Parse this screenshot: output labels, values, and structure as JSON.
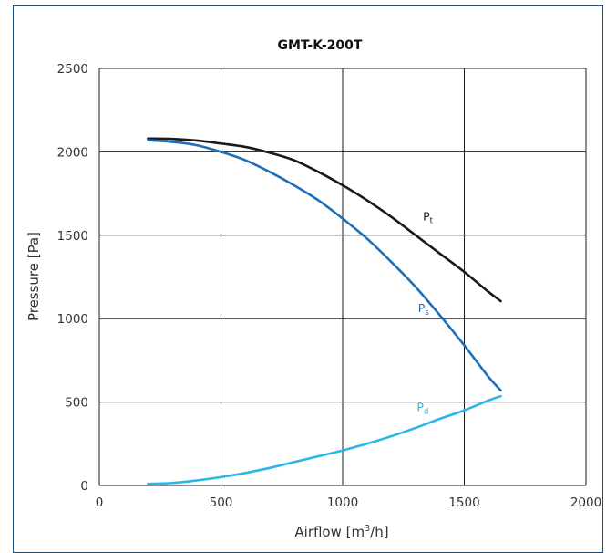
{
  "chart_data": {
    "type": "line",
    "title": "GMT-K-200T",
    "xlabel": "Airflow [m³/h]",
    "xlabel_base": "Airflow [m",
    "xlabel_sup": "3",
    "xlabel_tail": "/h]",
    "ylabel": "Pressure [Pa]",
    "xlim": [
      0,
      2000
    ],
    "ylim": [
      0,
      2500
    ],
    "x_ticks": [
      0,
      500,
      1000,
      1500,
      2000
    ],
    "y_ticks": [
      0,
      500,
      1000,
      1500,
      2000,
      2500
    ],
    "x_tick_labels": [
      "0",
      "500",
      "1000",
      "1500",
      "2000"
    ],
    "y_tick_labels": [
      "0",
      "500",
      "1000",
      "1500",
      "2000",
      "2500"
    ],
    "grid": true,
    "series": [
      {
        "name": "Pt",
        "label_main": "P",
        "label_sub": "t",
        "color": "#1a1a1a",
        "label_at": [
          1330,
          1590
        ],
        "x": [
          200,
          300,
          400,
          500,
          600,
          700,
          800,
          900,
          1000,
          1100,
          1200,
          1300,
          1400,
          1500,
          1600,
          1650
        ],
        "y": [
          2080,
          2078,
          2068,
          2050,
          2030,
          1995,
          1950,
          1880,
          1800,
          1710,
          1610,
          1500,
          1390,
          1280,
          1160,
          1105
        ]
      },
      {
        "name": "Ps",
        "label_main": "P",
        "label_sub": "s",
        "color": "#1d6fb8",
        "label_at": [
          1310,
          1040
        ],
        "x": [
          200,
          300,
          400,
          500,
          600,
          700,
          800,
          900,
          1000,
          1100,
          1200,
          1300,
          1400,
          1500,
          1600,
          1650
        ],
        "y": [
          2070,
          2060,
          2040,
          2000,
          1950,
          1880,
          1800,
          1710,
          1600,
          1480,
          1340,
          1190,
          1020,
          840,
          650,
          570
        ]
      },
      {
        "name": "Pd",
        "label_main": "P",
        "label_sub": "d",
        "color": "#2cb5e8",
        "label_at": [
          1305,
          445
        ],
        "x": [
          200,
          300,
          400,
          500,
          600,
          700,
          800,
          900,
          1000,
          1100,
          1200,
          1300,
          1400,
          1500,
          1600,
          1650
        ],
        "y": [
          10,
          15,
          30,
          50,
          75,
          105,
          140,
          175,
          210,
          250,
          295,
          345,
          400,
          450,
          510,
          535
        ]
      }
    ]
  }
}
